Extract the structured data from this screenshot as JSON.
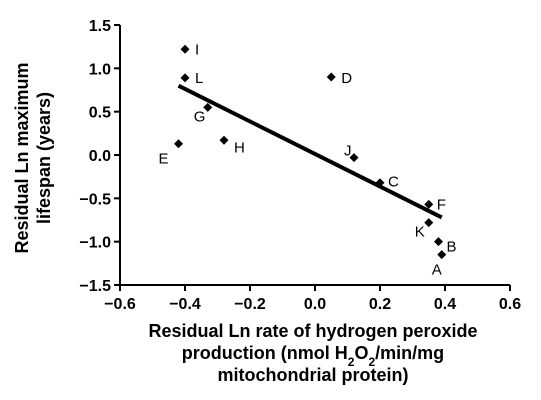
{
  "chart_data": {
    "type": "scatter",
    "xlabel": [
      "Residual Ln rate of hydrogen peroxide",
      "production (nmol H2O2/min/mg",
      "mitochondrial protein)"
    ],
    "ylabel": [
      "Residual Ln maximum",
      "lifespan (years)"
    ],
    "xlim": [
      -0.6,
      0.6
    ],
    "ylim": [
      -1.5,
      1.5
    ],
    "xticks": [
      -0.6,
      -0.4,
      -0.2,
      0.0,
      0.2,
      0.4,
      0.6
    ],
    "xtick_labels": [
      "−0.6",
      "−0.4",
      "−0.2",
      "0.0",
      "0.2",
      "0.4",
      "0.6"
    ],
    "yticks": [
      -1.5,
      -1.0,
      -0.5,
      0.0,
      0.5,
      1.0,
      1.5
    ],
    "ytick_labels": [
      "−1.5",
      "−1.0",
      "−0.5",
      "0.0",
      "0.5",
      "1.0",
      "1.5"
    ],
    "points": [
      {
        "label": "I",
        "x": -0.4,
        "y": 1.22
      },
      {
        "label": "L",
        "x": -0.4,
        "y": 0.89
      },
      {
        "label": "G",
        "x": -0.33,
        "y": 0.55
      },
      {
        "label": "E",
        "x": -0.42,
        "y": 0.13
      },
      {
        "label": "H",
        "x": -0.28,
        "y": 0.17
      },
      {
        "label": "D",
        "x": 0.05,
        "y": 0.9
      },
      {
        "label": "J",
        "x": 0.12,
        "y": -0.03
      },
      {
        "label": "C",
        "x": 0.2,
        "y": -0.32
      },
      {
        "label": "F",
        "x": 0.35,
        "y": -0.57
      },
      {
        "label": "K",
        "x": 0.35,
        "y": -0.78
      },
      {
        "label": "B",
        "x": 0.38,
        "y": -1.0
      },
      {
        "label": "A",
        "x": 0.39,
        "y": -1.15
      }
    ],
    "regression": {
      "x": [
        -0.42,
        0.39
      ],
      "y": [
        0.8,
        -0.72
      ]
    },
    "grid": false,
    "legend": "none"
  }
}
